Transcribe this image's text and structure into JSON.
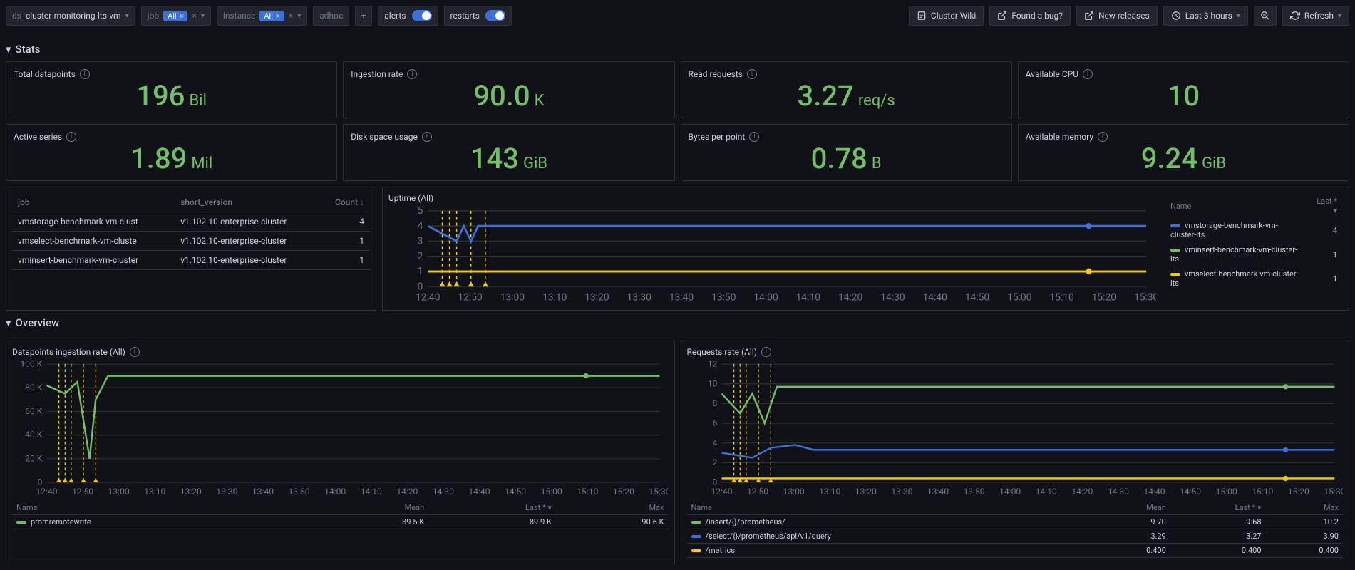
{
  "toolbar": {
    "ds_label": "ds",
    "ds_value": "cluster-monitoring-lts-vm",
    "job_label": "job",
    "job_chip": "All",
    "instance_label": "instance",
    "instance_chip": "All",
    "adhoc_label": "adhoc",
    "alerts_label": "alerts",
    "restarts_label": "restarts",
    "cluster_wiki": "Cluster Wiki",
    "found_bug": "Found a bug?",
    "new_releases": "New releases",
    "time_range": "Last 3 hours",
    "refresh": "Refresh"
  },
  "sections": {
    "stats": "Stats",
    "overview": "Overview"
  },
  "stats": [
    {
      "title": "Total datapoints",
      "value": "196",
      "unit": "Bil"
    },
    {
      "title": "Ingestion rate",
      "value": "90.0",
      "unit": "K"
    },
    {
      "title": "Read requests",
      "value": "3.27",
      "unit": "req/s"
    },
    {
      "title": "Available CPU",
      "value": "10",
      "unit": ""
    },
    {
      "title": "Active series",
      "value": "1.89",
      "unit": "Mil"
    },
    {
      "title": "Disk space usage",
      "value": "143",
      "unit": "GiB"
    },
    {
      "title": "Bytes per point",
      "value": "0.78",
      "unit": "B"
    },
    {
      "title": "Available memory",
      "value": "9.24",
      "unit": "GiB"
    }
  ],
  "job_table": {
    "columns": [
      "job",
      "short_version",
      "Count ↓"
    ],
    "rows": [
      [
        "vmstorage-benchmark-vm-clust",
        "v1.102.10-enterprise-cluster",
        "4"
      ],
      [
        "vmselect-benchmark-vm-cluste",
        "v1.102.10-enterprise-cluster",
        "1"
      ],
      [
        "vminsert-benchmark-vm-cluster",
        "v1.102.10-enterprise-cluster",
        "1"
      ]
    ]
  },
  "uptime": {
    "title": "Uptime (All)",
    "y_ticks": [
      "5",
      "4",
      "3",
      "2",
      "1",
      "0"
    ],
    "x_ticks": [
      "12:40",
      "12:50",
      "13:00",
      "13:10",
      "13:20",
      "13:30",
      "13:40",
      "13:50",
      "14:00",
      "14:10",
      "14:20",
      "14:30",
      "14:40",
      "14:50",
      "15:00",
      "15:10",
      "15:20",
      "15:30"
    ],
    "legend_cols": [
      "Name",
      "Last *"
    ],
    "series": [
      {
        "name": "vmstorage-benchmark-vm-cluster-lts",
        "color": "#3d71d9",
        "last": "4"
      },
      {
        "name": "vminsert-benchmark-vm-cluster-lts",
        "color": "#73bf69",
        "last": "1"
      },
      {
        "name": "vmselect-benchmark-vm-cluster-lts",
        "color": "#f2cc0c",
        "last": "1"
      }
    ]
  },
  "ingestion": {
    "title": "Datapoints ingestion rate (All)",
    "y_ticks": [
      "100 K",
      "80 K",
      "60 K",
      "40 K",
      "20 K",
      "0"
    ],
    "x_ticks": [
      "12:40",
      "12:50",
      "13:00",
      "13:10",
      "13:20",
      "13:30",
      "13:40",
      "13:50",
      "14:00",
      "14:10",
      "14:20",
      "14:30",
      "14:40",
      "14:50",
      "15:00",
      "15:10",
      "15:20",
      "15:30"
    ],
    "legend_cols": [
      "Name",
      "Mean",
      "Last *",
      "Max"
    ],
    "series": [
      {
        "name": "promremotewrite",
        "color": "#73bf69",
        "mean": "89.5 K",
        "last": "89.9 K",
        "max": "90.6 K"
      }
    ]
  },
  "requests": {
    "title": "Requests rate (All)",
    "y_ticks": [
      "12",
      "10",
      "8",
      "6",
      "4",
      "2",
      "0"
    ],
    "x_ticks": [
      "12:40",
      "12:50",
      "13:00",
      "13:10",
      "13:20",
      "13:30",
      "13:40",
      "13:50",
      "14:00",
      "14:10",
      "14:20",
      "14:30",
      "14:40",
      "14:50",
      "15:00",
      "15:10",
      "15:20",
      "15:30"
    ],
    "legend_cols": [
      "Name",
      "Mean",
      "Last *",
      "Max"
    ],
    "series": [
      {
        "name": "/insert/{}/prometheus/",
        "color": "#73bf69",
        "mean": "9.70",
        "last": "9.68",
        "max": "10.2"
      },
      {
        "name": "/select/{}/prometheus/api/v1/query",
        "color": "#3d71d9",
        "mean": "3.29",
        "last": "3.27",
        "max": "3.90"
      },
      {
        "name": "/metrics",
        "color": "#f2cc0c",
        "mean": "0.400",
        "last": "0.400",
        "max": "0.400"
      }
    ]
  },
  "colors": {
    "green": "#73bf69",
    "blue": "#3d71d9",
    "yellow": "#f2cc0c",
    "grid": "#2d3037",
    "axis": "#6e7687"
  }
}
